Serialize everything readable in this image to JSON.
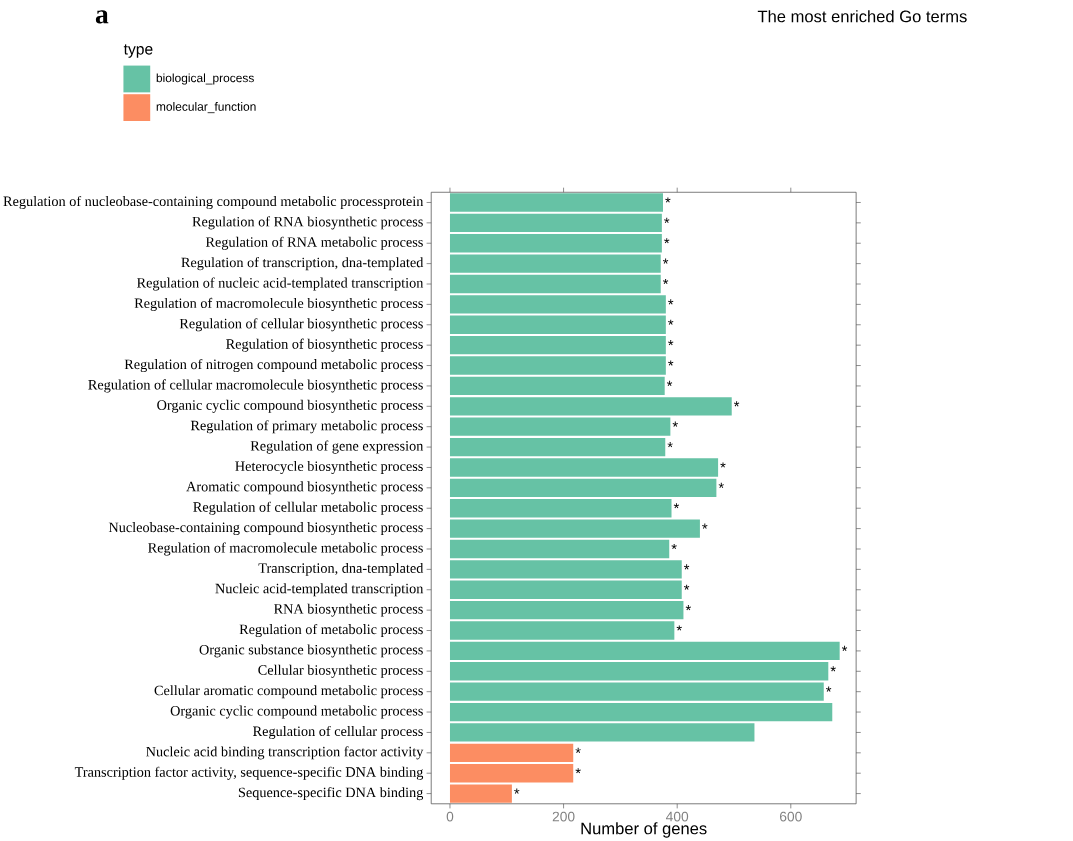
{
  "chart_data": {
    "type": "bar",
    "orientation": "horizontal",
    "title": "The most enriched Go terms",
    "xlabel": "Number of genes",
    "legend_title": "type",
    "legend": "left",
    "categories": [
      "Regulation of nucleobase-containing compound metabolic processprotein",
      "Regulation of RNA biosynthetic process",
      "Regulation of RNA metabolic process",
      "Regulation of transcription, dna-templated",
      "Regulation of nucleic acid-templated transcription",
      "Regulation of macromolecule biosynthetic process",
      "Regulation of cellular biosynthetic process",
      "Regulation of biosynthetic process",
      "Regulation of nitrogen compound metabolic process",
      "Regulation of cellular macromolecule biosynthetic process",
      "Organic cyclic compound biosynthetic process",
      "Regulation of primary metabolic process",
      "Regulation of gene expression",
      "Heterocycle biosynthetic process",
      "Aromatic compound biosynthetic process",
      "Regulation of cellular metabolic process",
      "Nucleobase-containing compound biosynthetic process",
      "Regulation of macromolecule metabolic process",
      "Transcription, dna-templated",
      "Nucleic acid-templated transcription",
      "RNA biosynthetic process",
      "Regulation of metabolic process",
      "Organic substance biosynthetic process",
      "Cellular biosynthetic process",
      "Cellular aromatic compound metabolic process",
      "Organic cyclic compound metabolic process",
      "Regulation of cellular process",
      "Nucleic acid binding transcription factor activity",
      "Transcription factor activity, sequence-specific DNA binding",
      "Sequence-specific DNA binding"
    ],
    "series": [
      {
        "name": "biological_process",
        "color": "#66c2a5",
        "values": [
          375,
          373,
          373,
          371,
          371,
          380,
          380,
          380,
          380,
          378,
          496,
          388,
          379,
          472,
          469,
          390,
          440,
          386,
          408,
          408,
          411,
          395,
          686,
          666,
          658,
          673,
          536,
          null,
          null,
          null
        ],
        "value_labels": [
          "*",
          "*",
          "*",
          "*",
          "*",
          "*",
          "*",
          "*",
          "*",
          "*",
          "*",
          "*",
          "*",
          "*",
          "*",
          "*",
          "*",
          "*",
          "*",
          "*",
          "*",
          "*",
          "*",
          "*",
          "*",
          null,
          null,
          null,
          null,
          null
        ]
      },
      {
        "name": "molecular_function",
        "color": "#fc8d62",
        "values": [
          null,
          null,
          null,
          null,
          null,
          null,
          null,
          null,
          null,
          null,
          null,
          null,
          null,
          null,
          null,
          null,
          null,
          null,
          null,
          null,
          null,
          null,
          null,
          null,
          null,
          null,
          null,
          217,
          217,
          109
        ],
        "value_labels": [
          null,
          null,
          null,
          null,
          null,
          null,
          null,
          null,
          null,
          null,
          null,
          null,
          null,
          null,
          null,
          null,
          null,
          null,
          null,
          null,
          null,
          null,
          null,
          null,
          null,
          null,
          null,
          "*",
          "*",
          "*"
        ]
      }
    ],
    "xlim": [
      -33,
      715
    ],
    "xticks": [
      0,
      200,
      400,
      600
    ],
    "annotations": [
      "a"
    ]
  }
}
